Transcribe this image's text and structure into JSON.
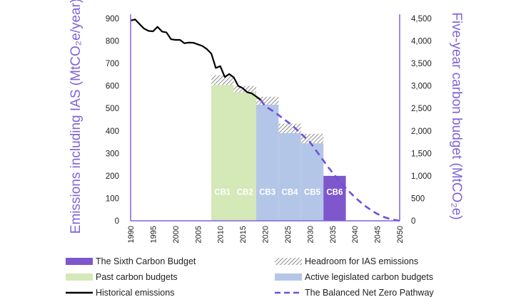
{
  "chart_data": {
    "type": "bar",
    "title": "",
    "ylabel_left": "Emissions including IAS (MtCO₂e/year)",
    "ylabel_right": "Five-year carbon budget (MtCO₂e)",
    "ylim_left": [
      0,
      900
    ],
    "ylim_right": [
      0,
      4500
    ],
    "xlim": [
      1990,
      2050
    ],
    "x_ticks": [
      1990,
      1995,
      2000,
      2005,
      2010,
      2015,
      2020,
      2025,
      2030,
      2035,
      2040,
      2045,
      2050
    ],
    "y_ticks_left": [
      0,
      100,
      200,
      300,
      400,
      500,
      600,
      700,
      800,
      900
    ],
    "y_ticks_right": [
      "0",
      "500",
      "1,000",
      "1,500",
      "2,000",
      "2,500",
      "3,000",
      "3,500",
      "4,000",
      "4,500"
    ],
    "grid": false,
    "legend_position": "bottom",
    "carbon_budgets": [
      {
        "label": "CB1",
        "start": 2008,
        "end": 2012,
        "value": 604,
        "headroom": 44,
        "kind": "past"
      },
      {
        "label": "CB2",
        "start": 2013,
        "end": 2017,
        "value": 572,
        "headroom": 28,
        "kind": "past"
      },
      {
        "label": "CB3",
        "start": 2018,
        "end": 2022,
        "value": 517,
        "headroom": 35,
        "kind": "active"
      },
      {
        "label": "CB4",
        "start": 2023,
        "end": 2027,
        "value": 390,
        "headroom": 42,
        "kind": "active"
      },
      {
        "label": "CB5",
        "start": 2028,
        "end": 2032,
        "value": 345,
        "headroom": 42,
        "kind": "active"
      },
      {
        "label": "CB6",
        "start": 2033,
        "end": 2037,
        "value": 200,
        "headroom": 0,
        "kind": "sixth"
      }
    ],
    "series": [
      {
        "name": "Historical emissions",
        "x": [
          1990,
          1991,
          1992,
          1993,
          1994,
          1995,
          1996,
          1997,
          1998,
          1999,
          2000,
          2001,
          2002,
          2003,
          2004,
          2005,
          2006,
          2007,
          2008,
          2009,
          2010,
          2011,
          2012,
          2013,
          2014,
          2015,
          2016,
          2017,
          2018,
          2019
        ],
        "values": [
          891,
          896,
          875,
          855,
          845,
          843,
          863,
          842,
          838,
          808,
          805,
          805,
          790,
          793,
          792,
          785,
          778,
          764,
          744,
          680,
          688,
          640,
          653,
          638,
          600,
          590,
          572,
          567,
          553,
          538
        ]
      },
      {
        "name": "The Balanced Net Zero Pathway",
        "x": [
          2019,
          2020,
          2022,
          2024,
          2026,
          2028,
          2030,
          2032,
          2034,
          2036,
          2038,
          2040,
          2042,
          2044,
          2046,
          2048,
          2050
        ],
        "values": [
          538,
          510,
          485,
          455,
          425,
          388,
          350,
          295,
          240,
          190,
          145,
          105,
          70,
          42,
          20,
          7,
          0
        ]
      }
    ],
    "legend": [
      {
        "key": "sixth",
        "label": "The Sixth Carbon Budget"
      },
      {
        "key": "headroom",
        "label": "Headroom for IAS emissions"
      },
      {
        "key": "past",
        "label": "Past carbon budgets"
      },
      {
        "key": "active",
        "label": "Active legislated carbon budgets"
      },
      {
        "key": "historical",
        "label": "Historical emissions"
      },
      {
        "key": "pathway",
        "label": "The Balanced Net Zero Pathway"
      }
    ],
    "colors": {
      "past": "#d4e8b8",
      "active": "#b4c6e7",
      "sixth": "#7e57cc",
      "headroom_bg": "#ffffff",
      "headroom_stripe": "#8c8c8c",
      "historical": "#000000",
      "pathway": "#6e4fdc",
      "axis": "#8064d8"
    }
  }
}
